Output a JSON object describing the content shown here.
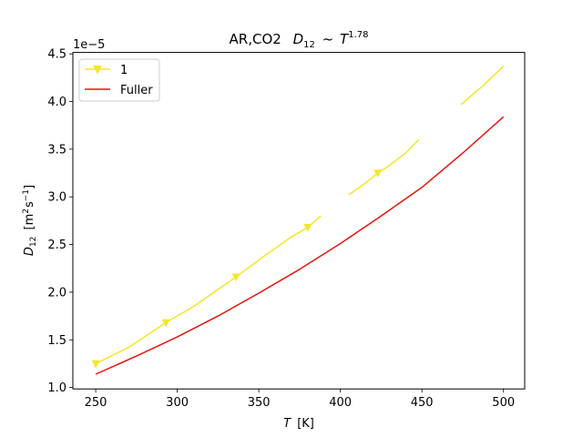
{
  "chart_data": {
    "type": "line",
    "title": {
      "prefix": "AR,CO2",
      "expr_main": "D",
      "expr_sub": "12",
      "expr_rel": "~",
      "expr_T": "T",
      "expr_exp": "1.78"
    },
    "xlabel": {
      "sym": "T",
      "unit": "[K]"
    },
    "ylabel": {
      "sym": "D",
      "sub": "12",
      "unit_open": "[m",
      "unit_sup1": "2",
      "unit_mid": "s",
      "unit_sup2": "−1",
      "unit_close": "]"
    },
    "offset_text": "1e−5",
    "xlim": [
      236,
      513
    ],
    "ylim": [
      0.985,
      4.515
    ],
    "x_ticks": [
      250,
      300,
      350,
      400,
      450,
      500
    ],
    "x_tick_labels": [
      "250",
      "300",
      "350",
      "400",
      "450",
      "500"
    ],
    "y_ticks": [
      1.0,
      1.5,
      2.0,
      2.5,
      3.0,
      3.5,
      4.0,
      4.5
    ],
    "y_tick_labels": [
      "1.0",
      "1.5",
      "2.0",
      "2.5",
      "3.0",
      "3.5",
      "4.0",
      "4.5"
    ],
    "legend": {
      "position": "upper-left",
      "entries": [
        "1",
        "Fuller"
      ]
    },
    "series": [
      {
        "name": "1",
        "color": "#f5e626",
        "marker": "triangle-down",
        "segments": [
          [
            [
              250,
              1.25
            ],
            [
              270,
              1.42
            ],
            [
              293,
              1.68
            ],
            [
              310,
              1.85
            ],
            [
              336,
              2.16
            ],
            [
              355,
              2.4
            ],
            [
              370,
              2.58
            ],
            [
              380,
              2.68
            ],
            [
              388,
              2.8
            ]
          ],
          [
            [
              405,
              3.02
            ],
            [
              415,
              3.14
            ],
            [
              423,
              3.25
            ],
            [
              430,
              3.33
            ],
            [
              440,
              3.46
            ],
            [
              448,
              3.6
            ]
          ],
          [
            [
              474,
              3.97
            ],
            [
              487,
              4.16
            ],
            [
              500,
              4.37
            ]
          ]
        ],
        "markers": [
          [
            250,
            1.25
          ],
          [
            293,
            1.68
          ],
          [
            336,
            2.16
          ],
          [
            380,
            2.68
          ],
          [
            423,
            3.25
          ]
        ]
      },
      {
        "name": "Fuller",
        "color": "#e8130c",
        "marker": "none",
        "segments": [
          [
            [
              250,
              1.14
            ],
            [
              275,
              1.33
            ],
            [
              300,
              1.53
            ],
            [
              325,
              1.75
            ],
            [
              350,
              1.99
            ],
            [
              375,
              2.24
            ],
            [
              400,
              2.51
            ],
            [
              425,
              2.8
            ],
            [
              450,
              3.1
            ],
            [
              475,
              3.46
            ],
            [
              500,
              3.84
            ]
          ]
        ],
        "markers": []
      }
    ]
  }
}
